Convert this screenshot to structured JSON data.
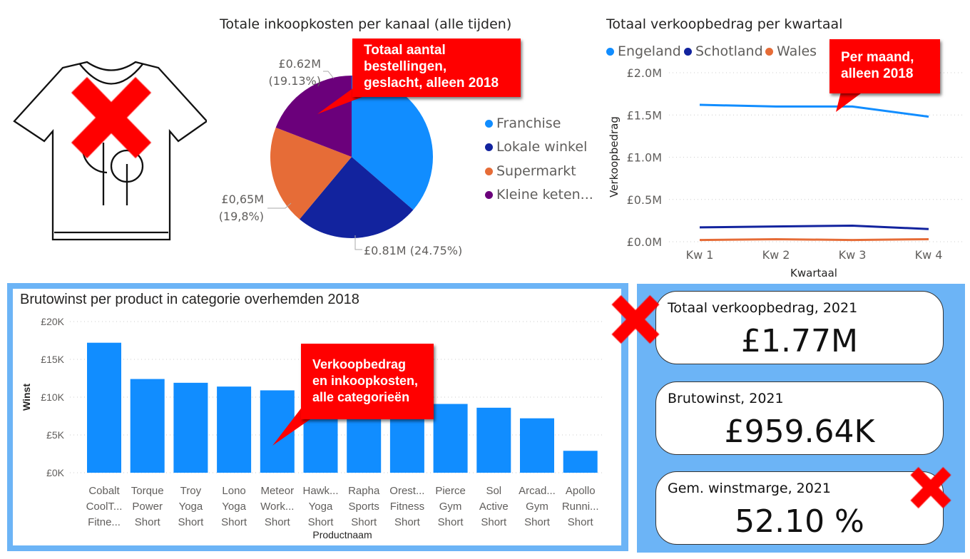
{
  "colors": {
    "franchise": "#118dff",
    "lokale_winkel": "#12239e",
    "supermarkt": "#e66c37",
    "kleine_keten": "#6b007b",
    "bars": "#118dff",
    "panel": "#6cb4f6",
    "callout": "#ff0000"
  },
  "icons": {
    "shirt": "t-shirt-icon",
    "cross": "red-x-icon"
  },
  "pie": {
    "chart_data": {
      "type": "pie",
      "title": "Totale inkoopkosten per kanaal (alle tijden)",
      "slices": [
        {
          "name": "Franchise",
          "percent": 36.32
        },
        {
          "name": "Lokale winkel",
          "percent": 24.75,
          "label": "£0.81M (24.75%)"
        },
        {
          "name": "Supermarkt",
          "percent": 19.8,
          "label1": "£0,65M",
          "label2": "(19,8%)"
        },
        {
          "name": "Kleine keten...",
          "percent": 19.13,
          "label1": "£0.62M",
          "label2": "(19.13%)"
        }
      ],
      "legend": "right"
    },
    "callout": "Totaal aantal\nbestellingen,\ngeslacht, alleen 2018"
  },
  "line": {
    "chart_data": {
      "type": "line",
      "title": "Totaal verkoopbedrag per kwartaal",
      "xlabel": "Kwartaal",
      "ylabel": "Verkoopbedrag",
      "categories": [
        "Kw 1",
        "Kw 2",
        "Kw 3",
        "Kw 4"
      ],
      "yticks": [
        "£0.0M",
        "£0.5M",
        "£1.0M",
        "£1.5M",
        "£2.0M"
      ],
      "ylim": [
        0,
        2.0
      ],
      "grid": true,
      "legend": "top-left",
      "series": [
        {
          "name": "Engeland",
          "values": [
            1.62,
            1.6,
            1.6,
            1.48
          ]
        },
        {
          "name": "Schotland",
          "values": [
            0.17,
            0.18,
            0.19,
            0.15
          ]
        },
        {
          "name": "Wales",
          "values": [
            0.02,
            0.03,
            0.02,
            0.03
          ]
        }
      ]
    },
    "callout": "Per maand,\nalleen 2018"
  },
  "bar": {
    "chart_data": {
      "type": "bar",
      "title": "Brutowinst per product in categorie overhemden 2018",
      "xlabel": "Productnaam",
      "ylabel": "Winst",
      "yticks": [
        "£0K",
        "£5K",
        "£10K",
        "£15K",
        "£20K"
      ],
      "ylim": [
        0,
        20
      ],
      "grid": true,
      "categories": [
        [
          "Cobalt",
          "CoolT...",
          "Fitne..."
        ],
        [
          "Torque",
          "Power",
          "Short"
        ],
        [
          "Troy",
          "Yoga",
          "Short"
        ],
        [
          "Lono",
          "Yoga",
          "Short"
        ],
        [
          "Meteor",
          "Work...",
          "Short"
        ],
        [
          "Hawk...",
          "Yoga",
          "Short"
        ],
        [
          "Rapha",
          "Sports",
          "Short"
        ],
        [
          "Orest...",
          "Fitness",
          "Short"
        ],
        [
          "Pierce",
          "Gym",
          "Short"
        ],
        [
          "Sol",
          "Active",
          "Short"
        ],
        [
          "Arcad...",
          "Gym",
          "Short"
        ],
        [
          "Apollo",
          "Runni...",
          "Short"
        ]
      ],
      "values": [
        17.2,
        12.4,
        11.9,
        11.4,
        10.9,
        10.3,
        9.8,
        9.4,
        9.1,
        8.6,
        7.2,
        2.9
      ]
    },
    "callout": "Verkoopbedrag\nen inkoopkosten,\nalle categorieën"
  },
  "kpis": [
    {
      "label": "Totaal verkoopbedrag, 2021",
      "value": "£1.77M"
    },
    {
      "label": "Brutowinst, 2021",
      "value": "£959.64K"
    },
    {
      "label": "Gem. winstmarge, 2021",
      "value": "52.10 %"
    }
  ]
}
